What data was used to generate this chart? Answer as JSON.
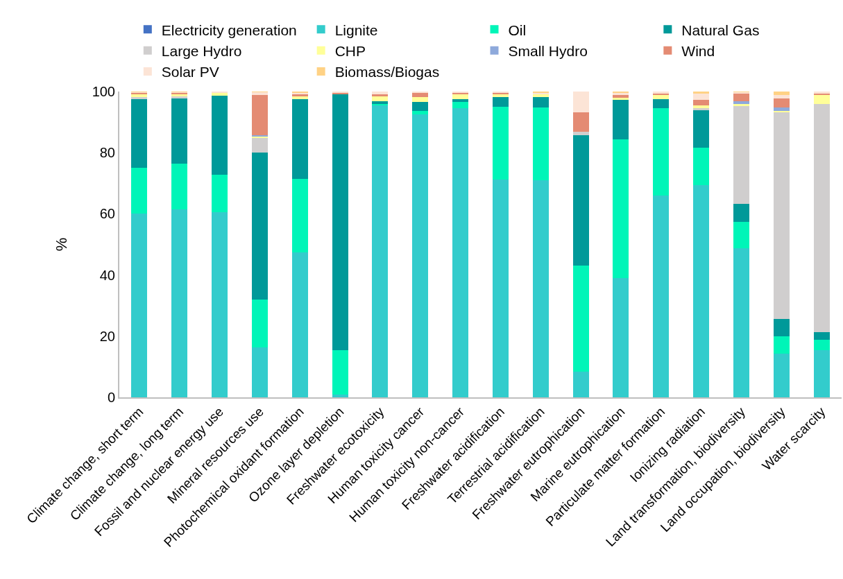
{
  "chart_data": {
    "type": "bar",
    "stacked": true,
    "ylabel": "%",
    "ylim": [
      0,
      100
    ],
    "yticks": [
      0,
      20,
      40,
      60,
      80,
      100
    ],
    "grid": false,
    "legend": "top",
    "categories": [
      "Climate change, short term",
      "Climate change, long term",
      "Fossil and nuclear energy use",
      "Mineral resources use",
      "Photochemical oxidant formation",
      "Ozone layer depletion",
      "Freshwater ecotoxicity",
      "Human toxicity cancer",
      "Human toxicity non-cancer",
      "Freshwater acidification",
      "Terrestrial acidification",
      "Freshwater eutrophication",
      "Marine eutrophication",
      "Particulate matter formation",
      "Ionizing radiation",
      "Land transformation, biodiversity",
      "Land occupation, biodiversity",
      "Water scarcity"
    ],
    "series": [
      {
        "name": "Electricity generation",
        "color": "#4472c4",
        "values": [
          0,
          0,
          0,
          0,
          0,
          0,
          0,
          0,
          0,
          0,
          0,
          0,
          0,
          0,
          0,
          0,
          0,
          0
        ]
      },
      {
        "name": "Lignite",
        "color": "#33cccc",
        "values": [
          60,
          61.5,
          60.5,
          16.3,
          47.3,
          1,
          95.5,
          92.5,
          94.6,
          71.2,
          71,
          8.5,
          39,
          66,
          69.5,
          48.7,
          14.3,
          15.5
        ]
      },
      {
        "name": "Oil",
        "color": "#00f5b8",
        "values": [
          15,
          15,
          12.3,
          15.7,
          24.1,
          14.4,
          0.5,
          1.2,
          2,
          23.8,
          23.8,
          34.6,
          45.3,
          28.6,
          12.1,
          8.6,
          5.7,
          3.4
        ]
      },
      {
        "name": "Natural Gas",
        "color": "#009999",
        "values": [
          22.5,
          21.2,
          25.8,
          48,
          26.1,
          83.6,
          0.8,
          2.9,
          0.9,
          3.2,
          3.4,
          42.6,
          12.9,
          3,
          12.5,
          6,
          5.6,
          2.4
        ]
      },
      {
        "name": "Large Hydro",
        "color": "#d0cece",
        "values": [
          0.8,
          0.8,
          null,
          5,
          0,
          0,
          0,
          0,
          0,
          0,
          0,
          1.1,
          0,
          0,
          0.4,
          32,
          67.8,
          74.6
        ]
      },
      {
        "name": "CHP",
        "color": "#ffff99",
        "values": [
          1,
          0.5,
          1,
          0.3,
          1,
          0,
          1.6,
          1.6,
          1.6,
          1.1,
          1,
          0,
          0.7,
          1.2,
          1,
          0.7,
          0.3,
          3
        ]
      },
      {
        "name": "Small Hydro",
        "color": "#8ea9db",
        "values": [
          0,
          0,
          0,
          0.5,
          0,
          0,
          0,
          0,
          0,
          0,
          0,
          0,
          0,
          0,
          0,
          0.9,
          1.1,
          0
        ]
      },
      {
        "name": "Wind",
        "color": "#e48b73",
        "values": [
          0.3,
          0.6,
          0,
          13,
          0.6,
          0.5,
          0.6,
          1.3,
          0.4,
          0.3,
          0,
          6.4,
          0.9,
          0.6,
          1.7,
          2.4,
          3,
          0.4
        ]
      },
      {
        "name": "Solar PV",
        "color": "#fce4d6",
        "values": [
          0.3,
          0.3,
          0.3,
          1,
          0.4,
          0.5,
          1,
          0.5,
          0.6,
          0.4,
          0.4,
          6.8,
          0.7,
          0.6,
          2.2,
          0.5,
          1.1,
          0.7
        ]
      },
      {
        "name": "Biomass/Biogas",
        "color": "#ffd285",
        "values": [
          0.1,
          0.2,
          0,
          0.2,
          0.5,
          0,
          0,
          0,
          0,
          0,
          0.4,
          0,
          0.5,
          0,
          0.6,
          0.2,
          1.1,
          0
        ]
      }
    ]
  }
}
